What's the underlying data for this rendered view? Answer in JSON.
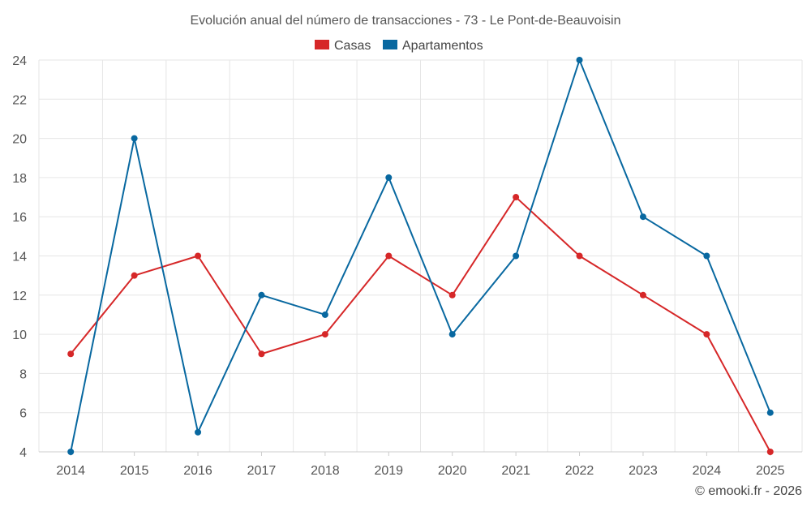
{
  "chart_data": {
    "type": "line",
    "title": "Evolución anual del número de transacciones - 73 - Le Pont-de-Beauvoisin",
    "xlabel": "",
    "ylabel": "",
    "categories": [
      "2014",
      "2015",
      "2016",
      "2017",
      "2018",
      "2019",
      "2020",
      "2021",
      "2022",
      "2023",
      "2024",
      "2025"
    ],
    "ylim": [
      4,
      24
    ],
    "yticks": [
      4,
      6,
      8,
      10,
      12,
      14,
      16,
      18,
      20,
      22,
      24
    ],
    "grid": true,
    "legend_position": "top-center",
    "series": [
      {
        "name": "Casas",
        "color": "#d62728",
        "values": [
          9,
          13,
          14,
          9,
          10,
          14,
          12,
          17,
          14,
          12,
          10,
          4
        ]
      },
      {
        "name": "Apartamentos",
        "color": "#0868a0",
        "values": [
          4,
          20,
          5,
          12,
          11,
          18,
          10,
          14,
          24,
          16,
          14,
          6
        ]
      }
    ]
  },
  "footer": {
    "credit": "© emooki.fr - 2026"
  }
}
